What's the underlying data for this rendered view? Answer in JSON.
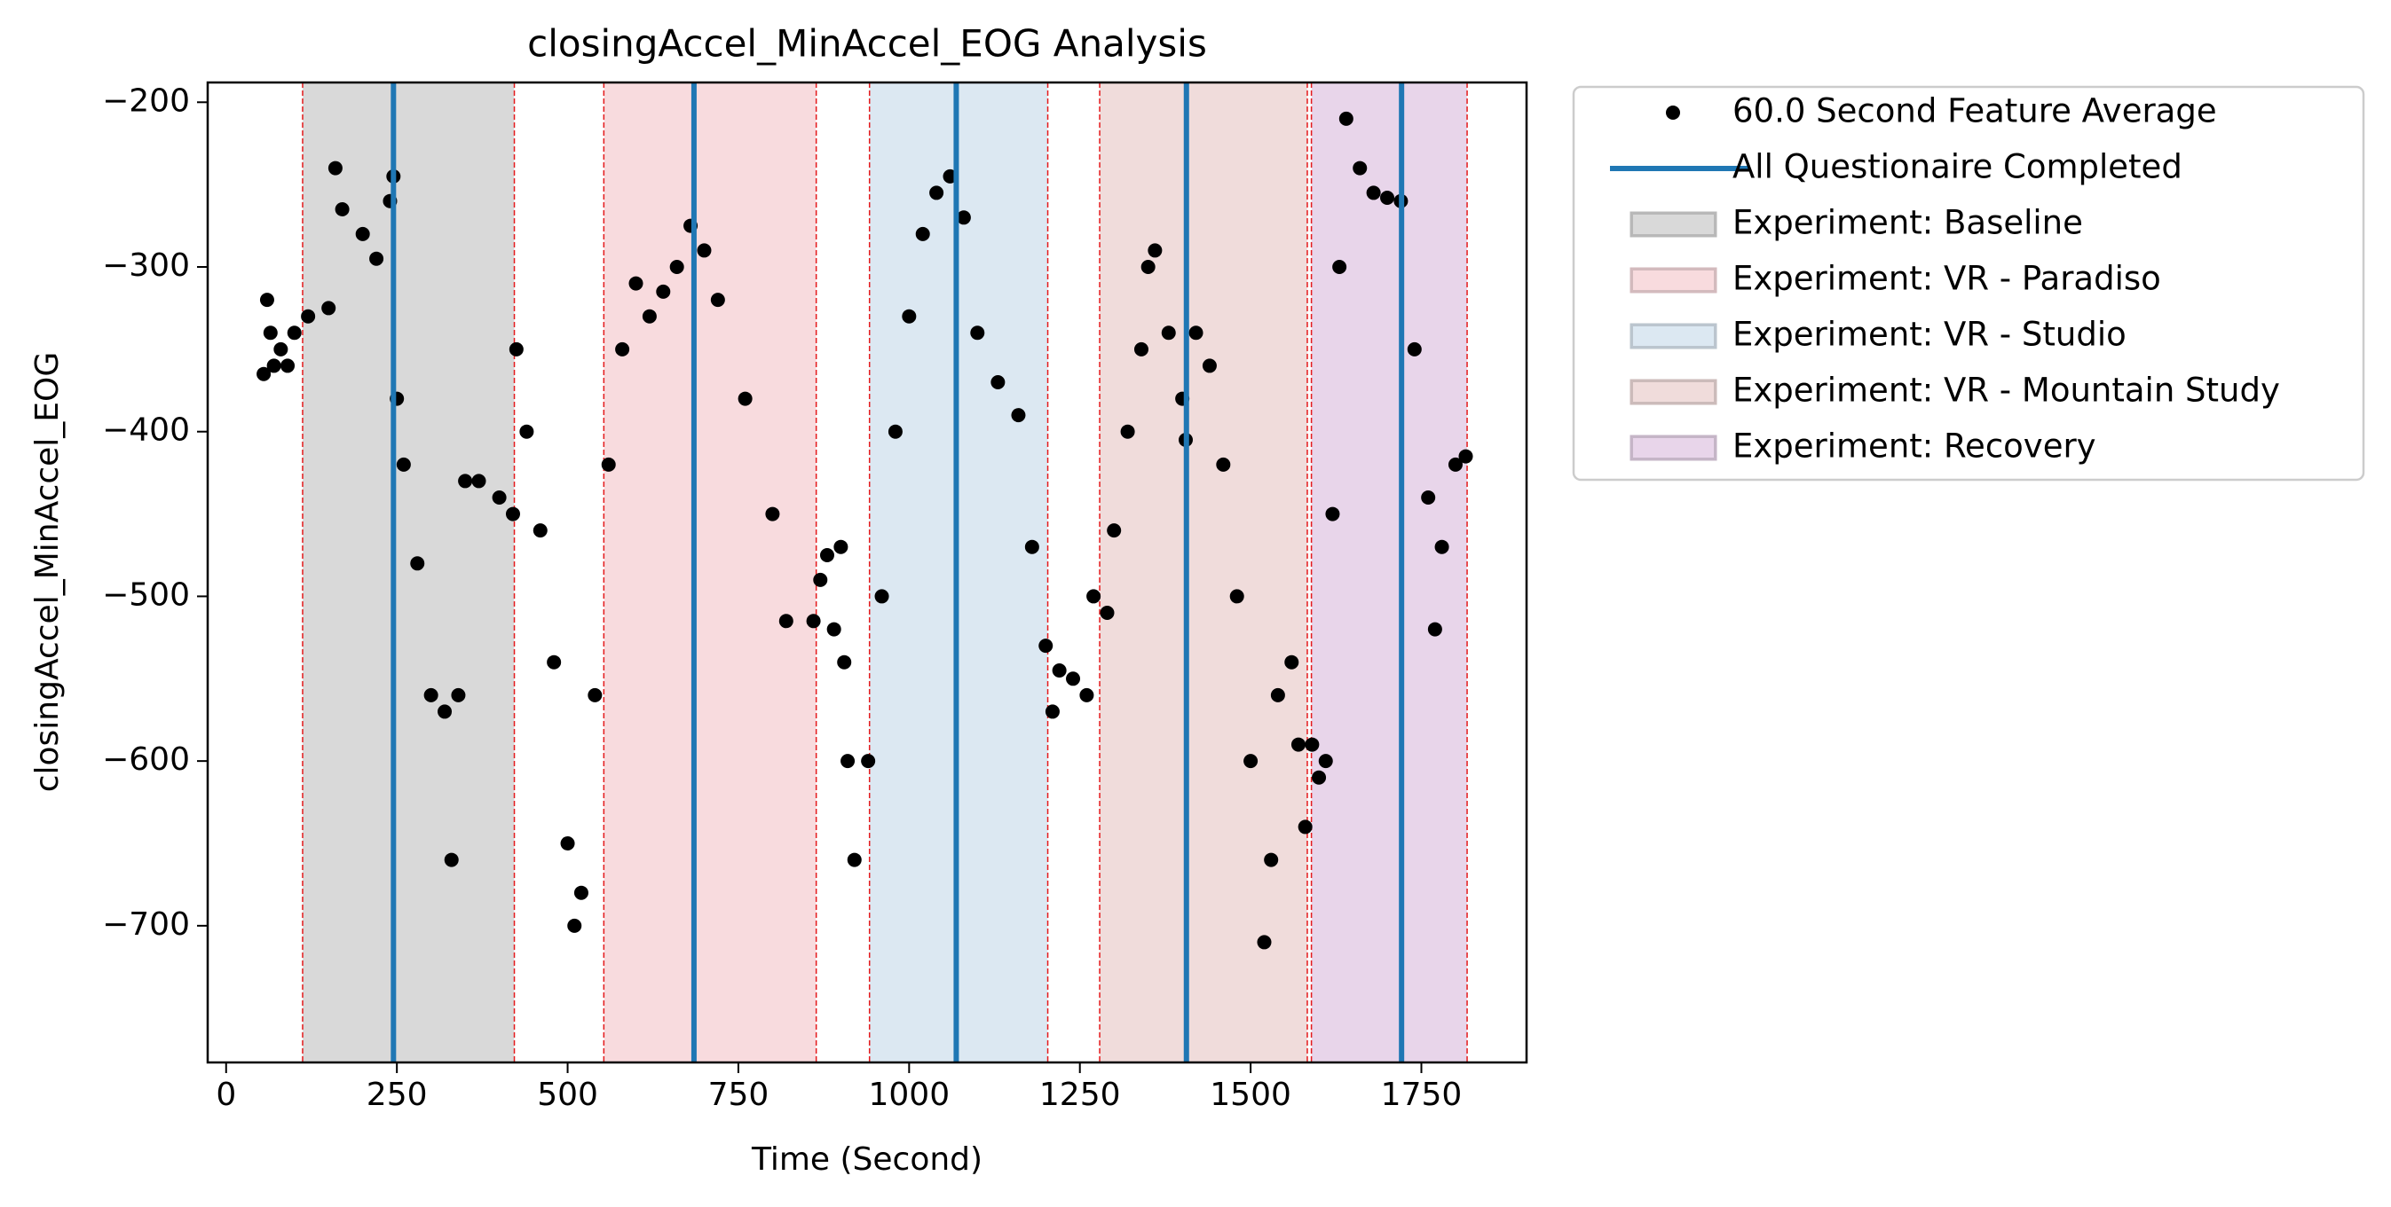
{
  "chart_data": {
    "type": "scatter",
    "title": "closingAccel_MinAccel_EOG Analysis",
    "x_label": "Time (Second)",
    "y_label": "closingAccel_MinAccel_EOG",
    "xlim": [
      -27,
      1904
    ],
    "ylim": [
      -783,
      -188
    ],
    "xticks": [
      0,
      250,
      500,
      750,
      1000,
      1250,
      1500,
      1750
    ],
    "yticks": [
      {
        "value": -700,
        "label": "−700"
      },
      {
        "value": -600,
        "label": "−600"
      },
      {
        "value": -500,
        "label": "−500"
      },
      {
        "value": -400,
        "label": "−400"
      },
      {
        "value": -300,
        "label": "−300"
      },
      {
        "value": -200,
        "label": "−200"
      }
    ],
    "legend": "outside-upper-right",
    "boundary_color": "#e41a1c",
    "series": [
      {
        "name": "60.0 Second Feature Average",
        "color": "#000000",
        "x": [
          55,
          60,
          65,
          70,
          80,
          90,
          100,
          120,
          150,
          160,
          170,
          200,
          220,
          240,
          245,
          250,
          260,
          280,
          300,
          320,
          330,
          340,
          350,
          370,
          400,
          420,
          425,
          440,
          460,
          480,
          500,
          510,
          520,
          540,
          560,
          580,
          600,
          620,
          640,
          660,
          680,
          700,
          720,
          760,
          800,
          820,
          860,
          870,
          880,
          890,
          900,
          905,
          910,
          920,
          940,
          960,
          980,
          1000,
          1020,
          1040,
          1060,
          1080,
          1100,
          1130,
          1160,
          1180,
          1200,
          1210,
          1220,
          1240,
          1260,
          1270,
          1290,
          1300,
          1320,
          1340,
          1350,
          1360,
          1380,
          1400,
          1405,
          1420,
          1440,
          1460,
          1480,
          1500,
          1520,
          1530,
          1540,
          1560,
          1570,
          1580,
          1590,
          1600,
          1610,
          1620,
          1630,
          1640,
          1660,
          1680,
          1700,
          1720,
          1740,
          1760,
          1770,
          1780,
          1800,
          1815
        ],
        "values": [
          -365,
          -320,
          -340,
          -360,
          -350,
          -360,
          -340,
          -330,
          -325,
          -240,
          -265,
          -280,
          -295,
          -260,
          -245,
          -380,
          -420,
          -480,
          -560,
          -570,
          -660,
          -560,
          -430,
          -430,
          -440,
          -450,
          -350,
          -400,
          -460,
          -540,
          -650,
          -700,
          -680,
          -560,
          -420,
          -350,
          -310,
          -330,
          -315,
          -300,
          -275,
          -290,
          -320,
          -380,
          -450,
          -515,
          -515,
          -490,
          -475,
          -520,
          -470,
          -540,
          -600,
          -660,
          -600,
          -500,
          -400,
          -330,
          -280,
          -255,
          -245,
          -270,
          -340,
          -370,
          -390,
          -470,
          -530,
          -570,
          -545,
          -550,
          -560,
          -500,
          -510,
          -460,
          -400,
          -350,
          -300,
          -290,
          -340,
          -380,
          -405,
          -340,
          -360,
          -420,
          -500,
          -600,
          -710,
          -660,
          -560,
          -540,
          -590,
          -640,
          -590,
          -610,
          -600,
          -450,
          -300,
          -210,
          -240,
          -255,
          -258,
          -260,
          -350,
          -440,
          -520,
          -470,
          -420,
          -415
        ]
      }
    ],
    "vlines": {
      "name": "All Questionaire Completed",
      "color": "#1f77b4",
      "x": [
        245,
        685,
        1069,
        1406,
        1721
      ]
    },
    "regions": [
      {
        "name": "Experiment: Baseline",
        "color": "#d9d9d9",
        "start": 112,
        "end": 422
      },
      {
        "name": "Experiment: VR - Paradiso",
        "color": "#f8dbde",
        "start": 553,
        "end": 864
      },
      {
        "name": "Experiment: VR - Studio",
        "color": "#dce8f2",
        "start": 942,
        "end": 1203
      },
      {
        "name": "Experiment: VR - Mountain Study",
        "color": "#f0dcdb",
        "start": 1279,
        "end": 1583
      },
      {
        "name": "Experiment: Recovery",
        "color": "#e8d5ea",
        "start": 1589,
        "end": 1817
      }
    ]
  }
}
